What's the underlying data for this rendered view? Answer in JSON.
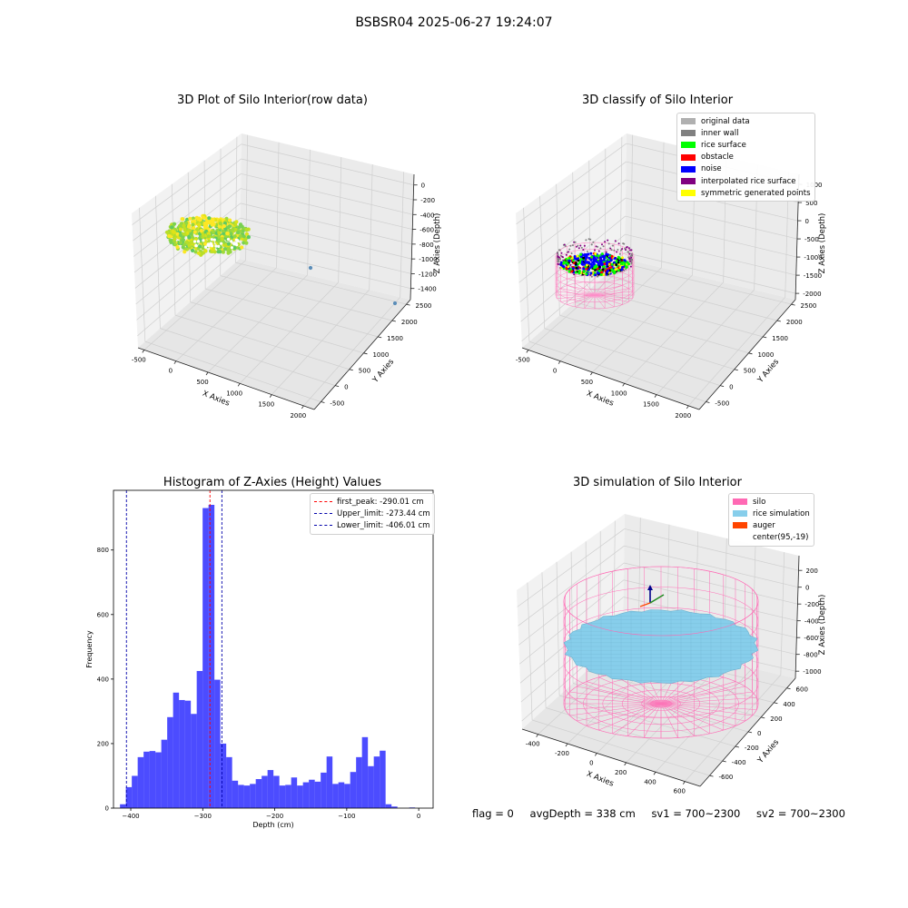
{
  "suptitle": "BSBSR04 2025-06-27 19:24:07",
  "chart_data": [
    {
      "type": "scatter",
      "title": "3D Plot of Silo Interior(row data)",
      "xlabel": "X Axies",
      "ylabel": "Y Axies",
      "zlabel": "Z Axies (Depth)",
      "x_ticks": [
        "-500",
        "0",
        "500",
        "1000",
        "1500",
        "2000"
      ],
      "y_ticks": [
        "-500",
        "0",
        "500",
        "1000",
        "1500",
        "2000",
        "2500"
      ],
      "z_ticks": [
        "0",
        "-200",
        "-400",
        "-600",
        "-800",
        "-1000",
        "-1200",
        "-1400"
      ],
      "colormap": "viridis",
      "grid": true
    },
    {
      "type": "scatter",
      "title": "3D classify of Silo Interior",
      "xlabel": "X Axies",
      "ylabel": "Y Axies",
      "zlabel": "Z Axies (Depth)",
      "x_ticks": [
        "-500",
        "0",
        "500",
        "1000",
        "1500",
        "2000"
      ],
      "y_ticks": [
        "-500",
        "0",
        "500",
        "1000",
        "1500",
        "2000",
        "2500"
      ],
      "z_ticks": [
        "1000",
        "500",
        "0",
        "-500",
        "-1000",
        "-1500",
        "-2000"
      ],
      "legend": [
        {
          "label": "original data",
          "color": "#b0b0b0"
        },
        {
          "label": "inner wall",
          "color": "#808080"
        },
        {
          "label": "rice surface",
          "color": "#00ff00"
        },
        {
          "label": "obstacle",
          "color": "#ff0000"
        },
        {
          "label": "noise",
          "color": "#0000ff"
        },
        {
          "label": "interpolated rice surface",
          "color": "#800080"
        },
        {
          "label": "symmetric generated points",
          "color": "#ffff00"
        }
      ],
      "legend_position": "upper-right",
      "grid": true
    },
    {
      "type": "bar",
      "title": "Histogram of Z-Axies (Height) Values",
      "xlabel": "Depth (cm)",
      "ylabel": "Frequency",
      "bar_color": "#0000ff",
      "x_range": [
        -424,
        20
      ],
      "y_range": [
        0,
        985
      ],
      "x_ticks": [
        -400,
        -300,
        -200,
        -100,
        0
      ],
      "y_ticks": [
        0,
        200,
        400,
        600,
        800
      ],
      "bin_start": -415,
      "bin_width": 8.2,
      "values": [
        12,
        65,
        100,
        158,
        175,
        177,
        173,
        212,
        282,
        358,
        335,
        333,
        292,
        425,
        930,
        940,
        398,
        200,
        158,
        85,
        72,
        70,
        75,
        90,
        100,
        118,
        100,
        70,
        72,
        95,
        70,
        80,
        88,
        82,
        110,
        160,
        75,
        80,
        75,
        112,
        158,
        220,
        130,
        160,
        178,
        12,
        5,
        0,
        0,
        2
      ],
      "lines": [
        {
          "label": "first_peak: -290.01 cm",
          "x": -290.01,
          "color": "#ff0000"
        },
        {
          "label": "Upper_limit: -273.44 cm",
          "x": -273.44,
          "color": "#0000aa"
        },
        {
          "label": "Lower_limit: -406.01 cm",
          "x": -406.01,
          "color": "#0000aa"
        }
      ],
      "legend_position": "upper-right"
    },
    {
      "type": "scatter",
      "title": "3D simulation of Silo Interior",
      "xlabel": "X Axies",
      "ylabel": "Y Axies",
      "zlabel": "Z Axies (Depth)",
      "x_ticks": [
        "-400",
        "-200",
        "0",
        "200",
        "400",
        "600"
      ],
      "y_ticks": [
        "-600",
        "-400",
        "-200",
        "0",
        "200",
        "400",
        "600"
      ],
      "z_ticks": [
        "200",
        "0",
        "-200",
        "-400",
        "-600",
        "-800",
        "-1000"
      ],
      "legend": [
        {
          "label": "silo",
          "color": "#ff69b4"
        },
        {
          "label": "rice simulation",
          "color": "#87ceeb"
        },
        {
          "label": "auger",
          "color": "#ff4500"
        },
        {
          "label": "center(95,-19)",
          "color": "#ffffff"
        }
      ],
      "legend_position": "upper-right",
      "grid": true
    }
  ],
  "footer": {
    "flag": "flag = 0",
    "avg_depth": "avgDepth = 338 cm",
    "sv1": "sv1 = 700~2300",
    "sv2": "sv2 = 700~2300"
  }
}
